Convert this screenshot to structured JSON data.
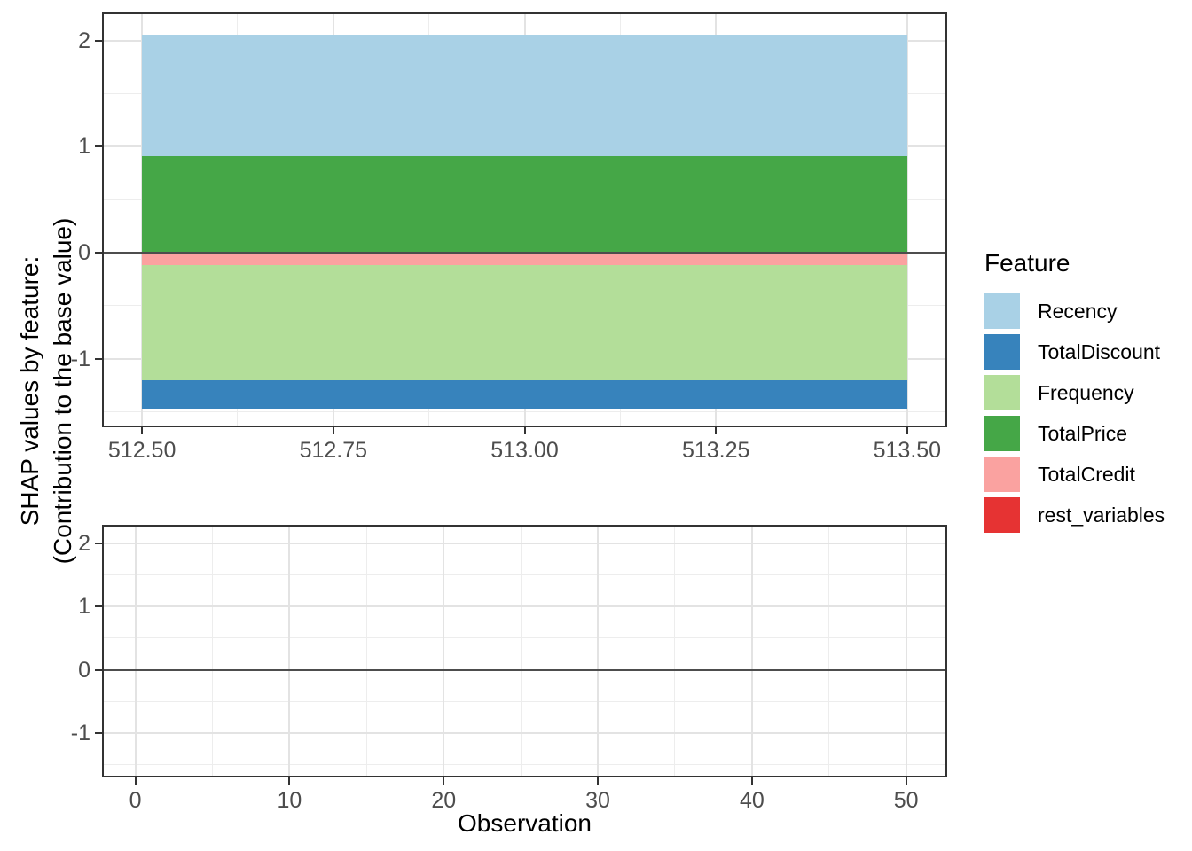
{
  "figure": {
    "y_axis_title_line1": "SHAP values by feature:",
    "y_axis_title_line2": "(Contribution to the base value)",
    "x_axis_title": "Observation"
  },
  "colors": {
    "background": "#FFFFFF",
    "panel_border": "#333333",
    "grid_major": "#E3E3E3",
    "grid_minor": "#EDEDED",
    "axis_tick": "#333333",
    "tick_label": "#4D4D4D",
    "zero_line": "#4D4D4D"
  },
  "legend": {
    "title": "Feature",
    "items": [
      {
        "label": "Recency",
        "color": "#A9D1E6"
      },
      {
        "label": "TotalDiscount",
        "color": "#3783BC"
      },
      {
        "label": "Frequency",
        "color": "#B3DE99"
      },
      {
        "label": "TotalPrice",
        "color": "#45A747"
      },
      {
        "label": "TotalCredit",
        "color": "#FAA2A0"
      },
      {
        "label": "rest_variables",
        "color": "#E63333"
      }
    ]
  },
  "chart_data": [
    {
      "type": "area",
      "panel": "top",
      "title": "",
      "xlabel": "",
      "ylabel": "SHAP values by feature: (Contribution to the base value)",
      "legend_position": "right",
      "grid": true,
      "xlim": [
        512.45,
        513.55
      ],
      "ylim": [
        -1.63,
        2.25
      ],
      "x_span": [
        512.5,
        513.5
      ],
      "x_ticks": [
        {
          "value": 512.5,
          "label": "512.50"
        },
        {
          "value": 512.75,
          "label": "512.75"
        },
        {
          "value": 513.0,
          "label": "513.00"
        },
        {
          "value": 513.25,
          "label": "513.25"
        },
        {
          "value": 513.5,
          "label": "513.50"
        }
      ],
      "x_minor_ticks": [
        512.625,
        512.875,
        513.125,
        513.375
      ],
      "y_ticks": [
        {
          "value": 2,
          "label": "2"
        },
        {
          "value": 1,
          "label": "1"
        },
        {
          "value": 0,
          "label": "0"
        },
        {
          "value": -1,
          "label": "-1"
        }
      ],
      "y_minor_ticks": [
        1.5,
        0.5,
        -0.5,
        -1.5
      ],
      "zero_line": 0,
      "bands": [
        {
          "feature": "Recency",
          "from": 0.91,
          "to": 2.06,
          "shap_value": 1.15
        },
        {
          "feature": "TotalPrice",
          "from": 0,
          "to": 0.91,
          "shap_value": 0.91
        },
        {
          "feature": "TotalCredit",
          "from": -0.12,
          "to": 0,
          "shap_value": -0.12
        },
        {
          "feature": "Frequency",
          "from": -1.2,
          "to": -0.12,
          "shap_value": -1.08
        },
        {
          "feature": "TotalDiscount",
          "from": -1.47,
          "to": -1.2,
          "shap_value": -0.27
        },
        {
          "feature": "rest_variables",
          "from": 0,
          "to": 0,
          "shap_value": 0
        }
      ]
    },
    {
      "type": "empty",
      "panel": "bottom",
      "title": "",
      "xlabel": "Observation",
      "grid": true,
      "xlim": [
        -2.05,
        52.55
      ],
      "ylim": [
        -1.67,
        2.26
      ],
      "x_ticks": [
        {
          "value": 0,
          "label": "0"
        },
        {
          "value": 10,
          "label": "10"
        },
        {
          "value": 20,
          "label": "20"
        },
        {
          "value": 30,
          "label": "30"
        },
        {
          "value": 40,
          "label": "40"
        },
        {
          "value": 50,
          "label": "50"
        }
      ],
      "x_minor_ticks": [
        5,
        15,
        25,
        35,
        45
      ],
      "y_ticks": [
        {
          "value": 2,
          "label": "2"
        },
        {
          "value": 1,
          "label": "1"
        },
        {
          "value": 0,
          "label": "0"
        },
        {
          "value": -1,
          "label": "-1"
        }
      ],
      "y_minor_ticks": [
        1.5,
        0.5,
        -0.5,
        -1.5
      ],
      "zero_line": 0,
      "bands": []
    }
  ]
}
